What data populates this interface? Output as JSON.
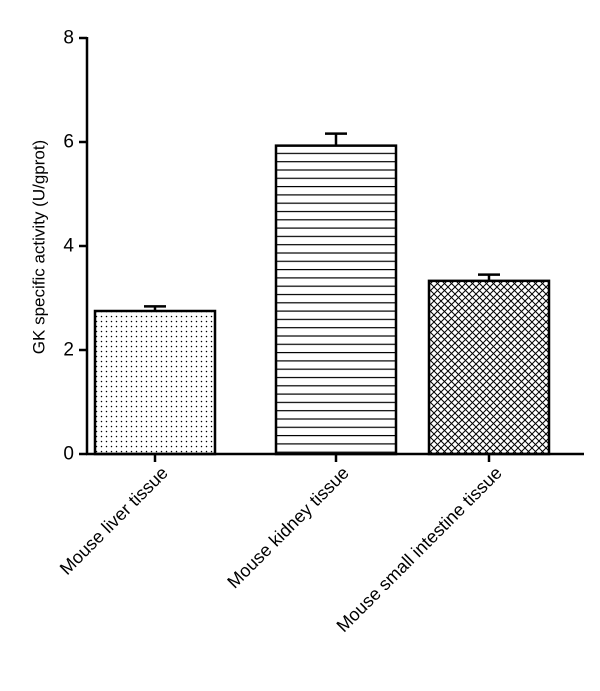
{
  "chart_data": {
    "type": "bar",
    "title": "",
    "xlabel": "",
    "ylabel": "GK specific activity (U/gprot)",
    "ylim": [
      0,
      8
    ],
    "yticks": [
      0,
      2,
      4,
      6,
      8
    ],
    "grid": false,
    "categories": [
      "Mouse liver tissue",
      "Mouse kidney tissue",
      "Mouse small intestine tissue"
    ],
    "values": [
      2.75,
      5.93,
      3.33
    ],
    "errors": [
      0.09,
      0.23,
      0.12
    ],
    "bar_patterns": [
      "dots",
      "horizontal-lines",
      "crosshatch"
    ],
    "colors": {
      "bar_fill": "#ffffff",
      "pattern": "#000000",
      "outline": "#000000"
    }
  }
}
